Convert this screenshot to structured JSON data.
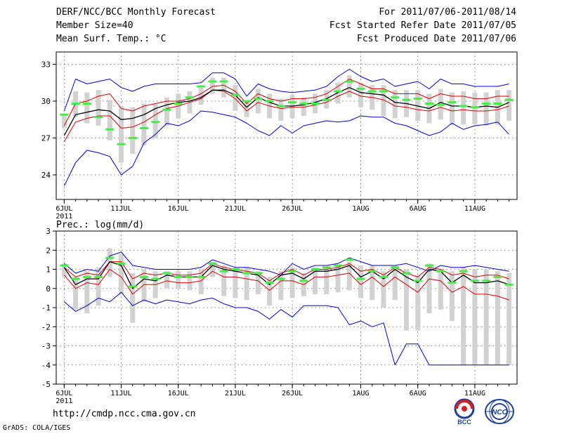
{
  "header": {
    "title": "DERF/NCC/BCC Monthly Forecast",
    "member_size": "Member Size=40",
    "variable": "Mean Surf. Temp.: °C",
    "period": "For 2011/07/06-2011/08/14",
    "fcst_started": "Fcst Started Refer Date 2011/07/05",
    "fcst_produced": "Fcst Produced Date 2011/07/06"
  },
  "footer": {
    "url": "http://cmdp.ncc.cma.gov.cn",
    "credit": "GrADS: COLA/IGES",
    "logo_bcc": "BCC",
    "logo_ncc": "NCC"
  },
  "colors": {
    "max_min": "#0000dd",
    "ensemble_mean": "#000000",
    "spread": "#dd0000",
    "member_box": "#d2d2d2",
    "observed": "#44ee44",
    "grid": "#555555"
  },
  "chart_data": [
    {
      "type": "line",
      "title": "Mean Surf. Temp.: °C",
      "x_label_suffix": "2011",
      "x_ticks": [
        {
          "day": 1,
          "label": "6JUL"
        },
        {
          "day": 6,
          "label": "11JUL"
        },
        {
          "day": 11,
          "label": "16JUL"
        },
        {
          "day": 16,
          "label": "21JUL"
        },
        {
          "day": 21,
          "label": "26JUL"
        },
        {
          "day": 27,
          "label": "1AUG"
        },
        {
          "day": 32,
          "label": "6AUG"
        },
        {
          "day": 37,
          "label": "11AUG"
        }
      ],
      "xlim": [
        0.3,
        40.7
      ],
      "ylim": [
        22,
        34
      ],
      "y_ticks": [
        24,
        27,
        30,
        33
      ],
      "grid": true,
      "series": [
        {
          "name": "max",
          "color": "#0000dd",
          "values": [
            23.1,
            25.0,
            26.0,
            25.8,
            25.5,
            24.0,
            24.7,
            26.6,
            27.3,
            28.2,
            28.0,
            28.4,
            29.2,
            29.1,
            28.9,
            28.7,
            28.2,
            27.6,
            27.2,
            28.0,
            27.4,
            28.0,
            28.2,
            28.4,
            28.3,
            28.4,
            28.8,
            28.7,
            28.7,
            28.2,
            28.0,
            27.6,
            27.2,
            27.5,
            28.2,
            27.7,
            28.0,
            28.1,
            28.3,
            27.3
          ]
        },
        {
          "name": "min",
          "color": "#0000dd",
          "values": [
            29.2,
            31.8,
            31.4,
            31.6,
            31.8,
            31.1,
            30.8,
            31.2,
            31.4,
            31.4,
            31.4,
            31.4,
            31.5,
            32.3,
            32.3,
            31.8,
            30.4,
            31.4,
            31.0,
            30.8,
            30.7,
            30.8,
            30.9,
            31.2,
            32.0,
            32.6,
            32.0,
            31.6,
            31.8,
            31.2,
            31.4,
            31.6,
            31.0,
            31.8,
            31.4,
            31.4,
            31.2,
            31.2,
            31.2,
            31.4
          ]
        },
        {
          "name": "upper",
          "color": "#dd0000",
          "values": [
            28.0,
            29.8,
            30.0,
            30.4,
            30.6,
            29.4,
            29.2,
            29.6,
            29.8,
            30.0,
            30.0,
            30.2,
            30.6,
            31.2,
            31.3,
            30.8,
            29.8,
            30.6,
            30.2,
            30.0,
            30.2,
            30.2,
            30.3,
            30.6,
            31.2,
            31.8,
            31.4,
            31.0,
            31.0,
            30.6,
            30.6,
            30.6,
            30.2,
            30.6,
            30.4,
            30.4,
            30.2,
            30.2,
            30.4,
            30.4
          ]
        },
        {
          "name": "ensemble_mean",
          "color": "#000000",
          "values": [
            27.2,
            28.9,
            29.1,
            29.3,
            29.2,
            28.5,
            28.6,
            28.9,
            29.4,
            29.7,
            29.9,
            30.0,
            30.3,
            30.9,
            30.9,
            30.5,
            29.5,
            30.3,
            29.9,
            29.6,
            29.6,
            29.7,
            29.9,
            30.2,
            30.7,
            31.1,
            30.7,
            30.6,
            30.5,
            29.9,
            29.8,
            29.6,
            29.4,
            29.9,
            29.6,
            29.6,
            29.5,
            29.6,
            29.5,
            29.9
          ]
        },
        {
          "name": "lower",
          "color": "#dd0000",
          "values": [
            26.7,
            28.3,
            28.6,
            28.8,
            28.8,
            27.8,
            27.9,
            28.3,
            28.9,
            29.4,
            29.6,
            29.9,
            30.2,
            30.9,
            30.8,
            30.2,
            29.2,
            29.9,
            29.6,
            29.4,
            29.5,
            29.5,
            29.7,
            29.9,
            30.4,
            30.8,
            30.4,
            30.3,
            30.1,
            29.6,
            29.5,
            29.3,
            29.2,
            29.5,
            29.2,
            29.3,
            29.2,
            29.2,
            29.3,
            29.6
          ]
        },
        {
          "name": "member_box_high",
          "color": "#d2d2d2",
          "values": [
            29.0,
            30.8,
            30.7,
            30.9,
            30.1,
            29.6,
            29.5,
            29.8,
            29.8,
            30.3,
            30.6,
            30.8,
            31.1,
            31.9,
            31.9,
            31.3,
            30.0,
            31.0,
            30.6,
            30.2,
            30.5,
            30.3,
            30.6,
            30.9,
            31.5,
            32.1,
            31.5,
            31.3,
            31.3,
            30.9,
            30.9,
            30.9,
            30.6,
            31.0,
            30.7,
            30.8,
            30.7,
            30.7,
            30.9,
            30.9
          ]
        },
        {
          "name": "member_box_low",
          "color": "#d2d2d2",
          "values": [
            27.8,
            28.7,
            28.2,
            28.0,
            26.8,
            25.0,
            25.7,
            26.4,
            27.0,
            28.0,
            28.6,
            29.0,
            29.7,
            30.6,
            30.3,
            29.2,
            28.7,
            29.0,
            28.6,
            28.4,
            28.6,
            28.8,
            29.0,
            29.4,
            29.8,
            30.3,
            29.5,
            29.3,
            28.8,
            28.6,
            28.7,
            28.4,
            28.2,
            28.5,
            28.1,
            28.1,
            28.1,
            28.0,
            28.1,
            28.4
          ]
        },
        {
          "name": "observed",
          "color": "#44ee44",
          "values": [
            28.9,
            29.8,
            29.8,
            28.7,
            27.7,
            26.5,
            27.0,
            27.8,
            28.3,
            29.3,
            29.8,
            30.3,
            31.2,
            31.6,
            31.6,
            30.5,
            30.0,
            30.2,
            30.0,
            29.6,
            29.9,
            29.8,
            29.8,
            30.1,
            30.8,
            31.6,
            31.0,
            30.8,
            30.8,
            30.3,
            30.1,
            30.2,
            29.8,
            29.7,
            29.9,
            29.6,
            29.5,
            29.8,
            29.8,
            30.1
          ]
        }
      ]
    },
    {
      "type": "line",
      "title": "Prec.: log(mm/d)",
      "x_label_suffix": "2011",
      "x_ticks": [
        {
          "day": 1,
          "label": "6JUL"
        },
        {
          "day": 6,
          "label": "11JUL"
        },
        {
          "day": 11,
          "label": "16JUL"
        },
        {
          "day": 16,
          "label": "21JUL"
        },
        {
          "day": 21,
          "label": "26JUL"
        },
        {
          "day": 27,
          "label": "1AUG"
        },
        {
          "day": 32,
          "label": "6AUG"
        },
        {
          "day": 37,
          "label": "11AUG"
        }
      ],
      "xlim": [
        0.3,
        40.7
      ],
      "ylim": [
        -5,
        3
      ],
      "y_ticks": [
        -5,
        -4,
        -3,
        -2,
        -1,
        0,
        1,
        2,
        3
      ],
      "grid": true,
      "series": [
        {
          "name": "max",
          "color": "#0000dd",
          "values": [
            1.3,
            0.8,
            1.0,
            0.9,
            1.7,
            1.9,
            1.2,
            1.1,
            1.0,
            1.0,
            1.0,
            1.0,
            1.1,
            1.5,
            1.3,
            1.1,
            1.1,
            1.0,
            0.9,
            0.7,
            1.3,
            1.0,
            1.2,
            1.2,
            1.3,
            1.6,
            1.4,
            1.2,
            1.2,
            1.2,
            1.3,
            1.1,
            0.9,
            1.2,
            1.1,
            1.1,
            1.2,
            1.1,
            1.0,
            0.9
          ]
        },
        {
          "name": "min",
          "color": "#0000dd",
          "values": [
            -0.7,
            -1.2,
            -0.9,
            -0.5,
            -0.7,
            -0.2,
            -0.9,
            -0.6,
            -0.8,
            -0.6,
            -0.7,
            -0.8,
            -0.6,
            -0.5,
            -0.8,
            -1.0,
            -1.0,
            -1.2,
            -1.6,
            -1.1,
            -1.5,
            -0.9,
            -0.9,
            -0.9,
            -1.0,
            -1.9,
            -1.7,
            -2.0,
            -1.8,
            -4.0,
            -2.9,
            -2.9,
            -4.0,
            -4.0,
            -4.0,
            -4.0,
            -4.0,
            -4.0,
            -4.0,
            -4.0
          ]
        },
        {
          "name": "upper",
          "color": "#dd0000",
          "values": [
            1.1,
            0.6,
            0.8,
            0.7,
            1.4,
            1.4,
            0.5,
            0.8,
            0.7,
            0.8,
            0.7,
            0.7,
            0.8,
            1.3,
            1.1,
            1.0,
            0.9,
            0.8,
            0.4,
            0.8,
            1.0,
            0.7,
            1.0,
            1.0,
            1.1,
            1.3,
            0.9,
            1.0,
            0.7,
            1.1,
            0.8,
            0.6,
            1.1,
            1.0,
            0.7,
            0.8,
            0.6,
            0.7,
            0.7,
            0.5
          ]
        },
        {
          "name": "ensemble_mean",
          "color": "#000000",
          "values": [
            1.1,
            0.2,
            0.5,
            0.5,
            1.4,
            1.2,
            0.0,
            0.5,
            0.4,
            0.7,
            0.6,
            0.6,
            0.6,
            1.2,
            1.0,
            0.9,
            0.8,
            0.7,
            0.2,
            0.7,
            0.8,
            0.5,
            0.9,
            0.9,
            1.0,
            1.2,
            0.6,
            0.9,
            0.5,
            1.0,
            0.6,
            0.3,
            1.0,
            0.9,
            0.3,
            0.7,
            0.3,
            0.3,
            0.4,
            0.2
          ]
        },
        {
          "name": "lower",
          "color": "#dd0000",
          "values": [
            0.7,
            0.0,
            0.3,
            0.2,
            1.0,
            0.6,
            -0.3,
            0.2,
            0.2,
            0.4,
            0.3,
            0.3,
            0.4,
            0.9,
            0.6,
            0.6,
            0.5,
            0.4,
            -0.1,
            0.4,
            0.4,
            0.2,
            0.6,
            0.6,
            0.7,
            0.8,
            0.2,
            0.6,
            0.1,
            0.6,
            0.2,
            -0.2,
            0.5,
            0.4,
            -0.2,
            0.1,
            -0.3,
            -0.3,
            -0.4,
            -0.6
          ]
        },
        {
          "name": "member_box_high",
          "color": "#d2d2d2",
          "values": [
            1.3,
            0.6,
            0.9,
            1.1,
            2.1,
            1.8,
            0.8,
            1.0,
            0.9,
            0.9,
            0.9,
            0.9,
            1.0,
            1.4,
            1.2,
            1.1,
            1.1,
            0.9,
            0.6,
            0.9,
            1.1,
            0.8,
            1.1,
            1.1,
            1.2,
            1.4,
            1.2,
            1.2,
            0.9,
            1.2,
            1.0,
            0.7,
            1.3,
            1.0,
            0.9,
            1.1,
            1.0,
            1.0,
            0.9,
            0.8
          ]
        },
        {
          "name": "member_box_low",
          "color": "#d2d2d2",
          "values": [
            0.6,
            -1.1,
            -1.3,
            -0.9,
            0.6,
            -0.3,
            -1.8,
            -0.7,
            -0.5,
            0.0,
            0.0,
            -0.1,
            -0.3,
            0.6,
            -0.4,
            -0.5,
            -0.6,
            -0.3,
            -0.9,
            -0.6,
            -0.5,
            -0.4,
            -0.3,
            -0.3,
            -0.2,
            -0.1,
            -0.5,
            -0.6,
            -1.0,
            -0.6,
            -2.2,
            -2.2,
            -1.3,
            -1.1,
            -1.7,
            -4.0,
            -4.0,
            -4.0,
            -4.0,
            -4.0
          ]
        },
        {
          "name": "observed",
          "color": "#44ee44",
          "values": [
            1.2,
            0.5,
            0.6,
            0.6,
            1.6,
            1.3,
            0.1,
            0.6,
            0.5,
            0.8,
            0.6,
            0.6,
            0.6,
            1.3,
            0.9,
            1.0,
            0.8,
            0.8,
            0.3,
            0.5,
            0.9,
            0.4,
            1.0,
            1.1,
            1.2,
            1.5,
            0.5,
            0.9,
            0.6,
            1.1,
            0.8,
            0.4,
            1.2,
            0.9,
            0.3,
            0.9,
            0.4,
            0.4,
            0.6,
            0.2
          ]
        }
      ]
    }
  ]
}
